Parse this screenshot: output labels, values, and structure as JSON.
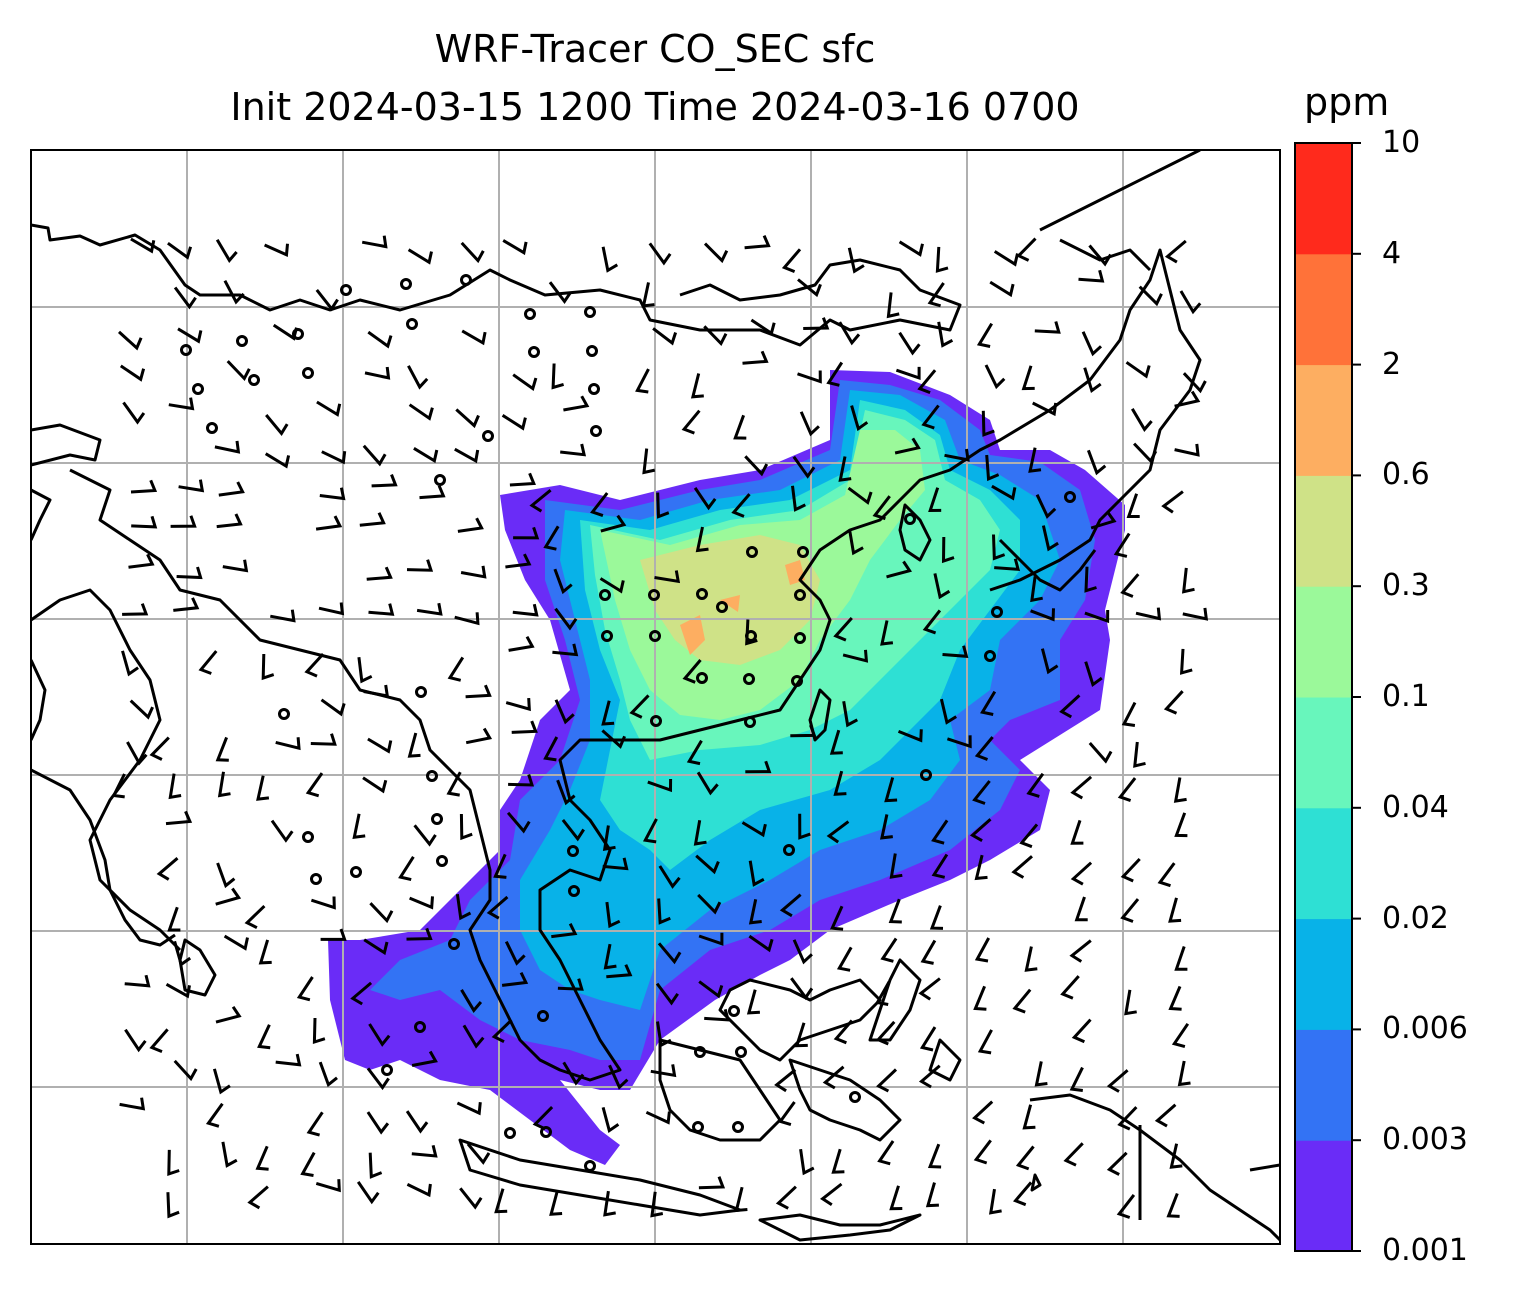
{
  "title": {
    "line1": "WRF-Tracer CO_SEC sfc",
    "line2": "Init 2024-03-15 1200 Time 2024-03-16 0700"
  },
  "colorbar": {
    "unit": "ppm",
    "levels": [
      "0.001",
      "0.003",
      "0.006",
      "0.02",
      "0.04",
      "0.1",
      "0.3",
      "0.6",
      "2",
      "4",
      "10"
    ],
    "colors": [
      "#6a2cf7",
      "#3373f4",
      "#08b2e8",
      "#2ee0d4",
      "#68f6bc",
      "#9bf99a",
      "#cfe287",
      "#fdae61",
      "#ff7239",
      "#ff2a1c"
    ]
  },
  "map": {
    "projection": "lat-lon",
    "gridlines": true,
    "coastline_color": "#000000",
    "gridline_color": "#b0b0b0",
    "wind_barb_color": "#000000"
  }
}
